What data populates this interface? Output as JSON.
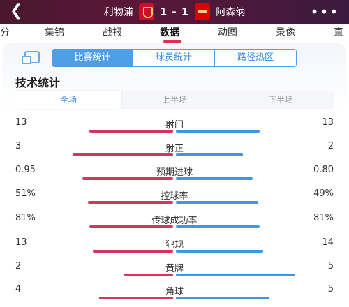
{
  "header": {
    "home_team": "利物浦",
    "score": "1 - 1",
    "away_team": "阿森纳"
  },
  "tabs": [
    {
      "label": "分"
    },
    {
      "label": "集锦"
    },
    {
      "label": "战报"
    },
    {
      "label": "数据"
    },
    {
      "label": "动图"
    },
    {
      "label": "录像"
    },
    {
      "label": "直"
    }
  ],
  "active_tab": "数据",
  "segments": [
    "比赛统计",
    "球员统计",
    "路径热区"
  ],
  "section_title": "技术统计",
  "periods": [
    "全场",
    "上半场",
    "下半场"
  ],
  "stats": [
    {
      "label": "射门",
      "home": "13",
      "away": "13",
      "home_ratio": 0.5,
      "away_ratio": 0.5
    },
    {
      "label": "射正",
      "home": "3",
      "away": "2",
      "home_ratio": 0.6,
      "away_ratio": 0.4
    },
    {
      "label": "预期进球",
      "home": "0.95",
      "away": "0.80",
      "home_ratio": 0.54,
      "away_ratio": 0.46
    },
    {
      "label": "控球率",
      "home": "51%",
      "away": "49%",
      "home_ratio": 0.51,
      "away_ratio": 0.49
    },
    {
      "label": "传球成功率",
      "home": "81%",
      "away": "81%",
      "home_ratio": 0.5,
      "away_ratio": 0.5
    },
    {
      "label": "犯规",
      "home": "13",
      "away": "14",
      "home_ratio": 0.48,
      "away_ratio": 0.52
    },
    {
      "label": "黄牌",
      "home": "2",
      "away": "5",
      "home_ratio": 0.29,
      "away_ratio": 0.71
    },
    {
      "label": "角球",
      "home": "4",
      "away": "5",
      "home_ratio": 0.44,
      "away_ratio": 0.56
    }
  ],
  "colors": {
    "home_bar": "#d6365d",
    "away_bar": "#3e96e4",
    "accent": "#4f9ee8"
  }
}
